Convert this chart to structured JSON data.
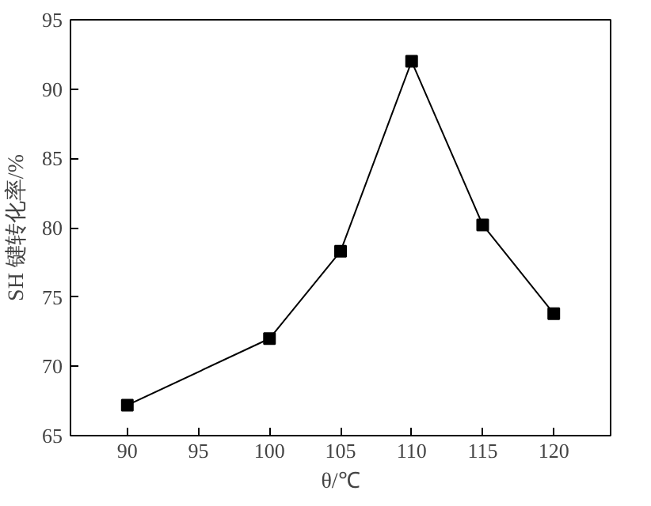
{
  "chart_data": {
    "type": "line",
    "xlabel": "θ/℃",
    "ylabel": "SH 键转化率/%",
    "x": [
      90,
      100,
      105,
      110,
      115,
      120
    ],
    "series": [
      {
        "color": "#000000",
        "values": [
          67.2,
          72.0,
          78.3,
          92.0,
          80.2,
          73.8
        ]
      }
    ],
    "xlim": [
      86,
      124
    ],
    "xticks": [
      90,
      95,
      100,
      105,
      110,
      115,
      120
    ],
    "ylim": [
      65,
      95
    ],
    "yticks": [
      65,
      70,
      75,
      80,
      85,
      90,
      95
    ],
    "marker": "square",
    "line_style": "solid",
    "grid": false
  }
}
